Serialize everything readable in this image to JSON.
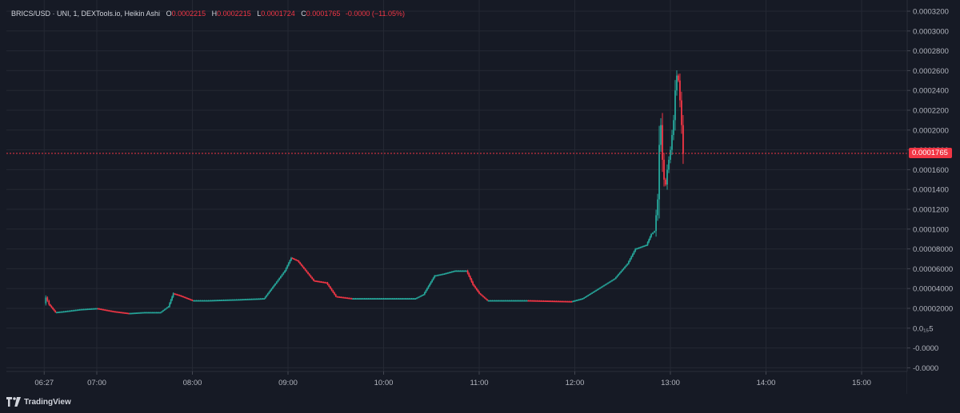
{
  "header": {
    "symbol": "BRICS/USD · UNI, 1, DEXTools.io, Heikin Ashi",
    "open_label": "O",
    "open_value": "0.0002215",
    "high_label": "H",
    "high_value": "0.0002215",
    "low_label": "L",
    "low_value": "0.0001724",
    "close_label": "C",
    "close_value": "0.0001765",
    "change": "-0.0000 (−11.05%)"
  },
  "price_badge": "0.0001765",
  "brand": {
    "name": "TradingView",
    "icon": "tradingview-logo-icon"
  },
  "colors": {
    "up": "#26a69a",
    "down": "#f23645",
    "background": "#161a25",
    "grid": "#242833",
    "last_price_line": "#f23645"
  },
  "chart_data": {
    "type": "candlestick",
    "style": "Heikin Ashi",
    "timeframe": "1",
    "y_axis_side": "right",
    "grid": true,
    "y_ticks": [
      "0.0003200",
      "0.0003000",
      "0.0002800",
      "0.0002600",
      "0.0002400",
      "0.0002200",
      "0.0002000",
      "0.0001800",
      "0.0001600",
      "0.0001400",
      "0.0001200",
      "0.0001000",
      "0.00008000",
      "0.00006000",
      "0.00004000",
      "0.00002000",
      "0.0₁₅5",
      "-0.0000",
      "-0.0000"
    ],
    "x_ticks": [
      "06:27",
      "07:00",
      "08:00",
      "09:00",
      "10:00",
      "11:00",
      "12:00",
      "13:00",
      "14:00",
      "15:00"
    ],
    "last_price": 0.0001765,
    "series": [
      {
        "t": "06:27",
        "p": 2.5e-05
      },
      {
        "t": "06:28",
        "p": 3.1e-05
      },
      {
        "t": "06:30",
        "p": 2.4e-05
      },
      {
        "t": "06:34",
        "p": 1.6e-05
      },
      {
        "t": "06:40",
        "p": 1.7e-05
      },
      {
        "t": "06:50",
        "p": 1.9e-05
      },
      {
        "t": "07:00",
        "p": 2e-05
      },
      {
        "t": "07:10",
        "p": 1.7e-05
      },
      {
        "t": "07:20",
        "p": 1.5e-05
      },
      {
        "t": "07:30",
        "p": 1.6e-05
      },
      {
        "t": "07:40",
        "p": 1.6e-05
      },
      {
        "t": "07:45",
        "p": 2.2e-05
      },
      {
        "t": "07:48",
        "p": 3.5e-05
      },
      {
        "t": "07:52",
        "p": 3.3e-05
      },
      {
        "t": "08:00",
        "p": 2.8e-05
      },
      {
        "t": "08:10",
        "p": 2.8e-05
      },
      {
        "t": "08:30",
        "p": 2.9e-05
      },
      {
        "t": "08:45",
        "p": 3e-05
      },
      {
        "t": "08:52",
        "p": 4.5e-05
      },
      {
        "t": "08:58",
        "p": 5.8e-05
      },
      {
        "t": "09:02",
        "p": 7.1e-05
      },
      {
        "t": "09:06",
        "p": 6.8e-05
      },
      {
        "t": "09:10",
        "p": 6e-05
      },
      {
        "t": "09:16",
        "p": 4.8e-05
      },
      {
        "t": "09:24",
        "p": 4.6e-05
      },
      {
        "t": "09:30",
        "p": 3.2e-05
      },
      {
        "t": "09:40",
        "p": 3e-05
      },
      {
        "t": "10:00",
        "p": 3e-05
      },
      {
        "t": "10:20",
        "p": 3e-05
      },
      {
        "t": "10:25",
        "p": 3.4e-05
      },
      {
        "t": "10:32",
        "p": 5.3e-05
      },
      {
        "t": "10:38",
        "p": 5.5e-05
      },
      {
        "t": "10:45",
        "p": 5.8e-05
      },
      {
        "t": "10:52",
        "p": 5.8e-05
      },
      {
        "t": "10:56",
        "p": 4.4e-05
      },
      {
        "t": "11:00",
        "p": 3.5e-05
      },
      {
        "t": "11:05",
        "p": 2.8e-05
      },
      {
        "t": "11:30",
        "p": 2.8e-05
      },
      {
        "t": "11:58",
        "p": 2.7e-05
      },
      {
        "t": "12:05",
        "p": 3e-05
      },
      {
        "t": "12:15",
        "p": 4e-05
      },
      {
        "t": "12:25",
        "p": 5e-05
      },
      {
        "t": "12:33",
        "p": 6.5e-05
      },
      {
        "t": "12:38",
        "p": 8e-05
      },
      {
        "t": "12:45",
        "p": 8.4e-05
      },
      {
        "t": "12:48",
        "p": 9.5e-05
      },
      {
        "t": "12:50",
        "p": 9.8e-05
      },
      {
        "t": "12:52",
        "p": 0.00013
      },
      {
        "t": "12:53",
        "p": 0.000185
      },
      {
        "t": "12:54",
        "p": 0.000205
      },
      {
        "t": "12:55",
        "p": 0.00017
      },
      {
        "t": "12:56",
        "p": 0.00015
      },
      {
        "t": "12:57",
        "p": 0.000145
      },
      {
        "t": "12:58",
        "p": 0.00016
      },
      {
        "t": "13:00",
        "p": 0.00018
      },
      {
        "t": "13:02",
        "p": 0.00021
      },
      {
        "t": "13:03",
        "p": 0.00024
      },
      {
        "t": "13:04",
        "p": 0.000255
      },
      {
        "t": "13:05",
        "p": 0.00025
      },
      {
        "t": "13:06",
        "p": 0.00023
      },
      {
        "t": "13:07",
        "p": 0.000205
      },
      {
        "t": "13:08",
        "p": 0.000176
      }
    ]
  }
}
